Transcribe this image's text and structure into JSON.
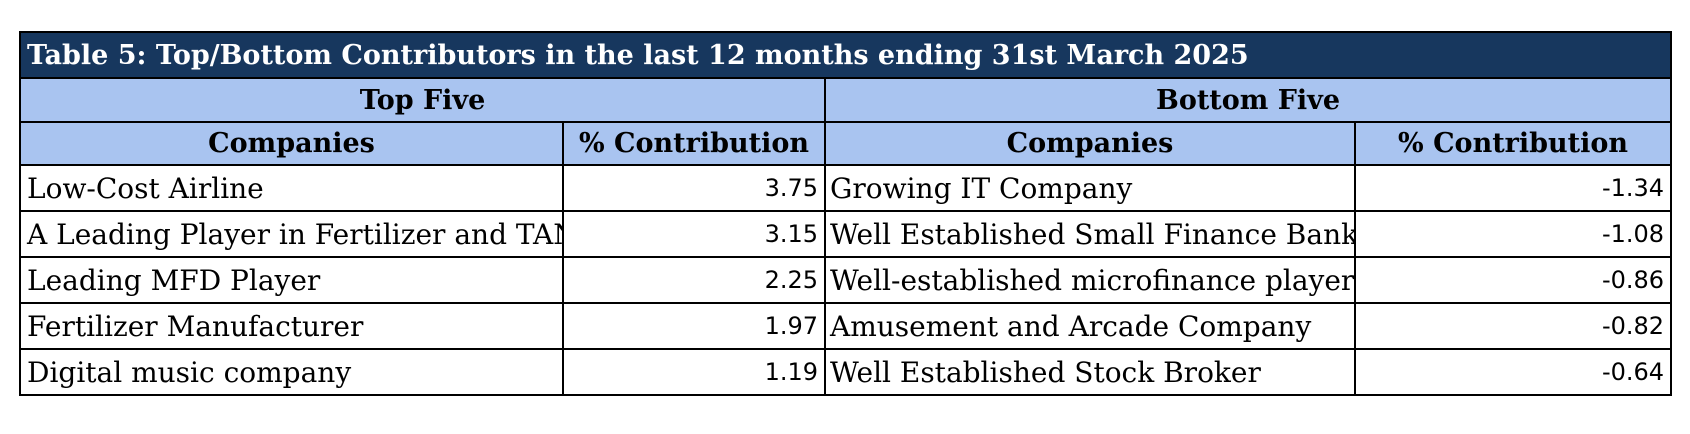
{
  "table": {
    "title": "Table 5: Top/Bottom Contributors in the last 12 months ending 31st March 2025",
    "top_group": "Top Five",
    "bottom_group": "Bottom Five",
    "columns": [
      "Companies",
      "% Contribution",
      "Companies",
      "% Contribution"
    ],
    "rows": [
      {
        "top_company": "Low-Cost Airline",
        "top_value": "3.75",
        "bottom_company": "Growing IT Company",
        "bottom_value": "-1.34"
      },
      {
        "top_company": "A Leading Player in Fertilizer and TAN",
        "top_value": "3.15",
        "bottom_company": "Well Established Small Finance Bank",
        "bottom_value": "-1.08"
      },
      {
        "top_company": "Leading MFD Player",
        "top_value": "2.25",
        "bottom_company": "Well-established microfinance player",
        "bottom_value": "-0.86"
      },
      {
        "top_company": "Fertilizer Manufacturer",
        "top_value": "1.97",
        "bottom_company": "Amusement and Arcade Company",
        "bottom_value": "-0.82"
      },
      {
        "top_company": "Digital music company",
        "top_value": "1.19",
        "bottom_company": "Well Established Stock Broker",
        "bottom_value": "-0.64"
      }
    ]
  }
}
